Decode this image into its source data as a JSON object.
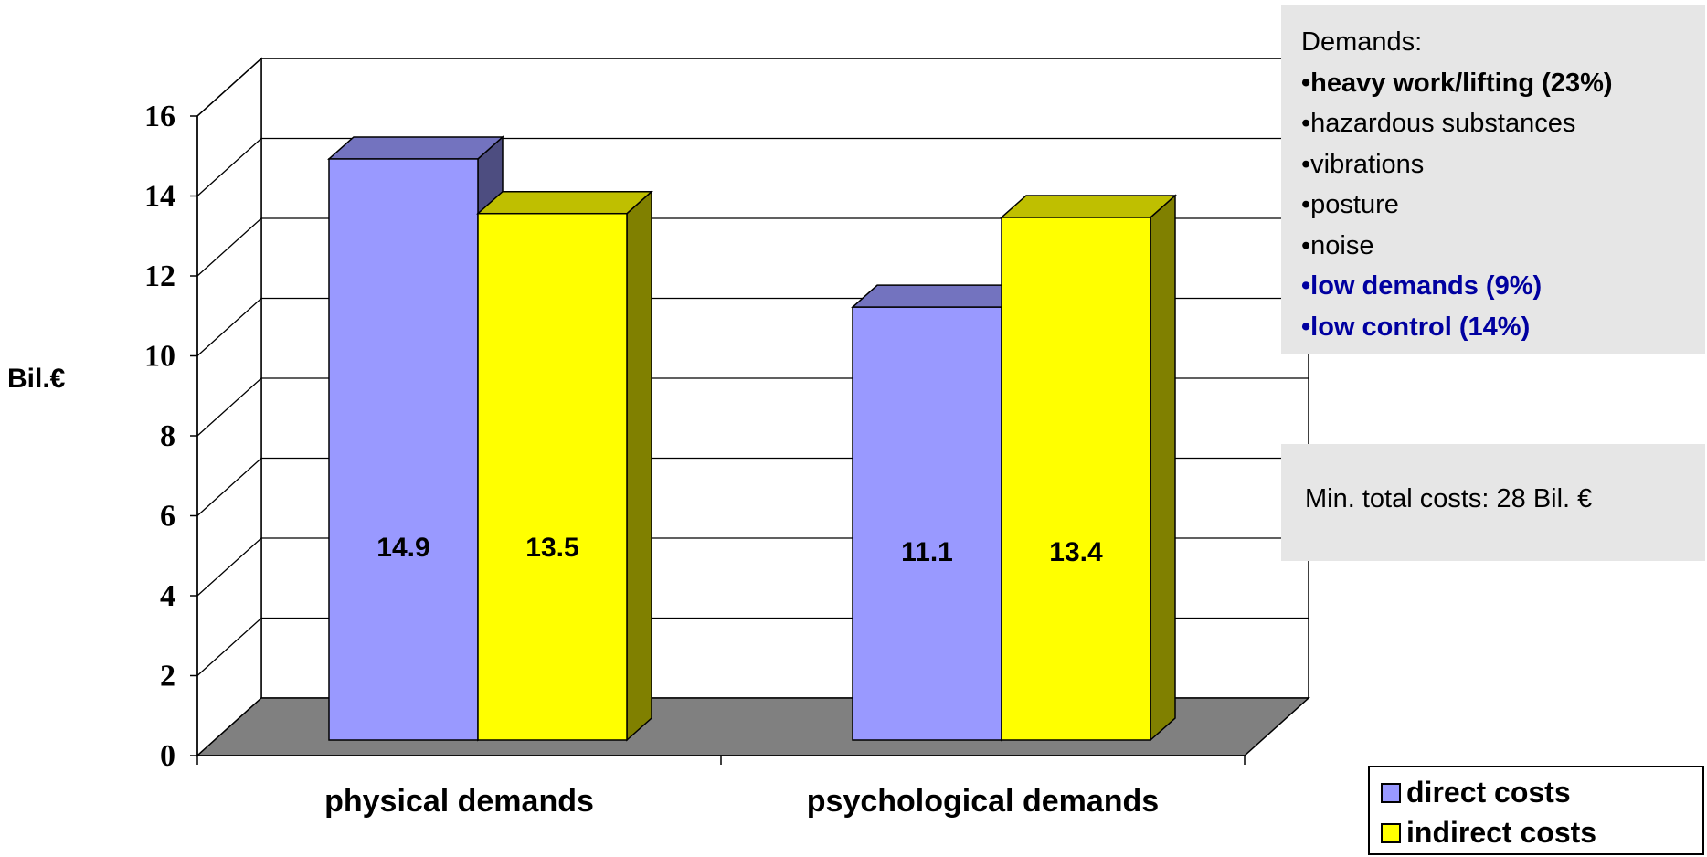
{
  "chart_data": {
    "type": "bar",
    "categories": [
      "physical demands",
      "psychological demands"
    ],
    "series": [
      {
        "name": "direct costs",
        "values": [
          14.9,
          11.1
        ],
        "color": "#9999ff"
      },
      {
        "name": "indirect costs",
        "values": [
          13.5,
          13.4
        ],
        "color": "#ffff00"
      }
    ],
    "data_labels": [
      [
        "14.9",
        "11.1"
      ],
      [
        "13.5",
        "13.4"
      ]
    ],
    "ylabel": "Bil.€",
    "ylim": [
      0,
      16
    ],
    "yticks": [
      "0",
      "2",
      "4",
      "6",
      "8",
      "10",
      "12",
      "14",
      "16"
    ],
    "grid": true,
    "style": "3d-clustered-column",
    "legend": "bottom-right"
  },
  "demands_panel": {
    "title": "Demands:",
    "items": [
      {
        "text": "•heavy work/lifting (23%)",
        "style": "bold"
      },
      {
        "text": "•hazardous substances",
        "style": "normal"
      },
      {
        "text": "•vibrations",
        "style": "normal"
      },
      {
        "text": "•posture",
        "style": "normal"
      },
      {
        "text": "•noise",
        "style": "normal"
      },
      {
        "text": "•low demands (9%)",
        "style": "blue"
      },
      {
        "text": "•low control (14%)",
        "style": "blue"
      }
    ]
  },
  "total_panel": {
    "text": "Min. total costs: 28 Bil. €"
  },
  "legend": {
    "items": [
      {
        "label": "direct costs",
        "color": "#9999ff"
      },
      {
        "label": "indirect costs",
        "color": "#ffff00"
      }
    ]
  }
}
